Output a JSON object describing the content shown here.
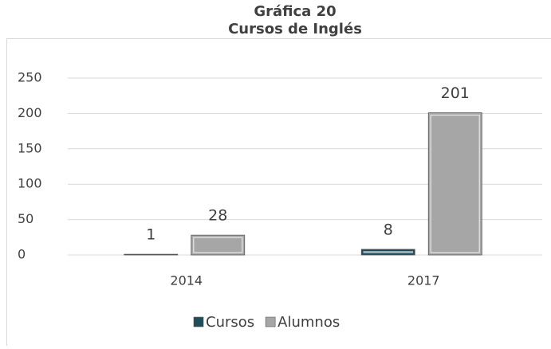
{
  "chart_data": {
    "type": "bar",
    "title": "Gráfica 20",
    "subtitle": "Cursos de Inglés",
    "categories": [
      "2014",
      "2017"
    ],
    "series": [
      {
        "name": "Cursos",
        "color": "#1f4e5a",
        "values": [
          1,
          8
        ]
      },
      {
        "name": "Alumnos",
        "color": "#a6a6a6",
        "values": [
          28,
          201
        ]
      }
    ],
    "ylim": [
      0,
      250
    ],
    "yticks": [
      0,
      50,
      100,
      150,
      200,
      250
    ],
    "grid": true,
    "legend": "bottom"
  }
}
